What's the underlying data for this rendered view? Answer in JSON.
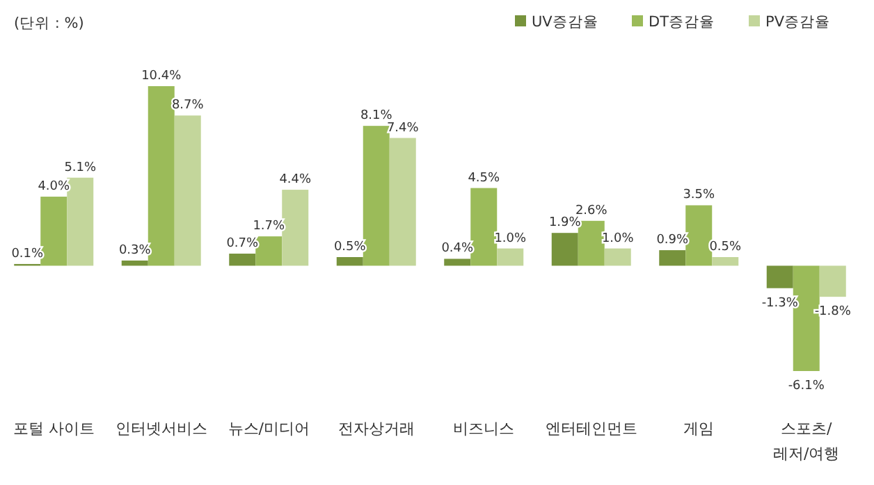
{
  "chart_data": {
    "type": "bar",
    "categories": [
      "포털 사이트",
      "인터넷서비스",
      "뉴스/미디어",
      "전자상거래",
      "비즈니스",
      "엔터테인먼트",
      "게임",
      "스포츠/\n레저/여행"
    ],
    "series": [
      {
        "name": "UV증감율",
        "color": "#77933c",
        "values": [
          0.1,
          0.3,
          0.7,
          0.5,
          0.4,
          1.9,
          0.9,
          -1.3
        ],
        "value_labels": [
          "0.1%",
          "0.3%",
          "0.7%",
          "0.5%",
          "0.4%",
          "1.9%",
          "0.9%",
          "-1.3%"
        ]
      },
      {
        "name": "DT증감율",
        "color": "#9bbb59",
        "values": [
          4.0,
          10.4,
          1.7,
          8.1,
          4.5,
          2.6,
          3.5,
          -6.1
        ],
        "value_labels": [
          "4.0%",
          "10.4%",
          "1.7%",
          "8.1%",
          "4.5%",
          "2.6%",
          "3.5%",
          "-6.1%"
        ]
      },
      {
        "name": "PV증감율",
        "color": "#c3d69b",
        "values": [
          5.1,
          8.7,
          4.4,
          7.4,
          1.0,
          1.0,
          0.5,
          -1.8
        ],
        "value_labels": [
          "5.1%",
          "8.7%",
          "4.4%",
          "7.4%",
          "1.0%",
          "1.0%",
          "0.5%",
          "-1.8%"
        ]
      }
    ],
    "legend": "top right",
    "annotations": [
      "(단위 : %)"
    ]
  }
}
